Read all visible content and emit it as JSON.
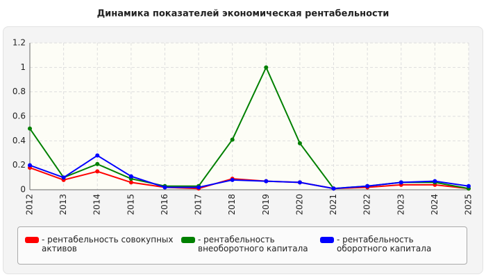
{
  "chart_data": {
    "type": "line",
    "title": "Динамика показателей экономическая рентабельности",
    "categories": [
      "2012",
      "2013",
      "2014",
      "2015",
      "2016",
      "2017",
      "2018",
      "2019",
      "2020",
      "2021",
      "2022",
      "2023",
      "2024",
      "2025"
    ],
    "series": [
      {
        "name": "- рентабельность совокупных активов",
        "color": "#ff0000",
        "values": [
          0.18,
          0.08,
          0.15,
          0.06,
          0.02,
          0.01,
          0.09,
          0.07,
          0.06,
          0.01,
          0.02,
          0.04,
          0.04,
          0.01
        ]
      },
      {
        "name": "- рентабельность внеоборотного капитала",
        "color": "#008000",
        "values": [
          0.5,
          0.1,
          0.21,
          0.09,
          0.03,
          0.03,
          0.41,
          1.0,
          0.38,
          0.01,
          0.03,
          0.06,
          0.06,
          0.01
        ]
      },
      {
        "name": "- рентабельность оборотного капитала",
        "color": "#0000ff",
        "values": [
          0.2,
          0.1,
          0.28,
          0.11,
          0.02,
          0.02,
          0.08,
          0.07,
          0.06,
          0.01,
          0.03,
          0.06,
          0.07,
          0.03
        ]
      }
    ],
    "ylim": [
      0,
      1.2
    ],
    "yticks": [
      0,
      0.2,
      0.4,
      0.6,
      0.8,
      1,
      1.2
    ],
    "grid": true
  }
}
